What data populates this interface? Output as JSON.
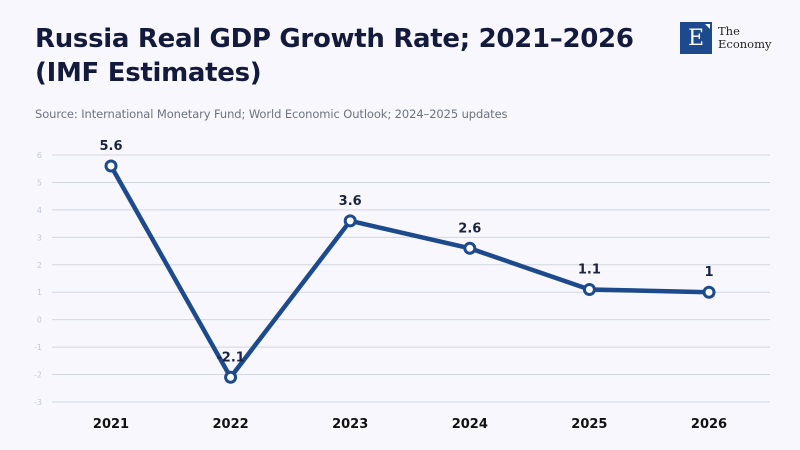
{
  "header": {
    "title": "Russia Real GDP Growth Rate; 2021–2026 (IMF Estimates)",
    "source": "Source: International Monetary Fund; World Economic Outlook; 2024–2025 updates"
  },
  "logo": {
    "icon": "E",
    "line1": "The",
    "line2": "Economy"
  },
  "colors": {
    "line": "#1d4a8c",
    "grid": "#d3d7e0",
    "background": "#f7f7fd"
  },
  "chart_data": {
    "type": "line",
    "title": "Russia Real GDP Growth Rate; 2021–2026 (IMF Estimates)",
    "xlabel": "",
    "ylabel": "",
    "categories": [
      "2021",
      "2022",
      "2023",
      "2024",
      "2025",
      "2026"
    ],
    "series": [
      {
        "name": "Real GDP Growth Rate",
        "values": [
          5.6,
          -2.1,
          3.6,
          2.6,
          1.1,
          1
        ]
      }
    ],
    "data_labels": [
      "5.6",
      "-2.1",
      "3.6",
      "2.6",
      "1.1",
      "1"
    ],
    "ylim": [
      -3,
      6
    ],
    "yticks": [
      6,
      5,
      4,
      3,
      2,
      1,
      0,
      -1,
      -2,
      -3
    ],
    "grid": true,
    "legend": "none"
  }
}
